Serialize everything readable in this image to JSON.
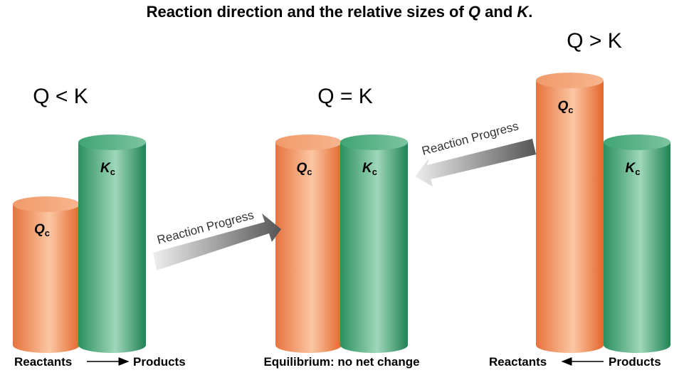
{
  "header": {
    "title_parts": [
      "Reaction direction and the relative sizes of ",
      "Q",
      " and ",
      "K",
      "."
    ]
  },
  "panels": [
    {
      "relation": "Q < K",
      "bars": [
        {
          "symbol": "Q",
          "subscript": "c"
        },
        {
          "symbol": "K",
          "subscript": "c"
        }
      ],
      "footer": {
        "left": "Reactants",
        "right": "Products"
      }
    },
    {
      "relation": "Q = K",
      "bars": [
        {
          "symbol": "Q",
          "subscript": "c"
        },
        {
          "symbol": "K",
          "subscript": "c"
        }
      ],
      "footer": {
        "text": "Equilibrium: no net change"
      }
    },
    {
      "relation": "Q > K",
      "bars": [
        {
          "symbol": "Q",
          "subscript": "c"
        },
        {
          "symbol": "K",
          "subscript": "c"
        }
      ],
      "footer": {
        "left": "Reactants",
        "right": "Products"
      }
    }
  ],
  "arrows": [
    {
      "label": "Reaction Progress"
    },
    {
      "label": "Reaction Progress"
    }
  ]
}
